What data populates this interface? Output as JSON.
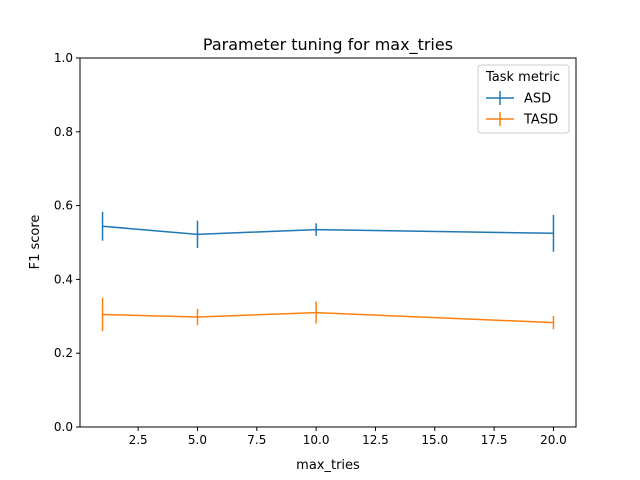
{
  "chart_data": {
    "type": "line",
    "title": "Parameter tuning for max_tries",
    "xlabel": "max_tries",
    "ylabel": "F1 score",
    "xlim": [
      0.05,
      20.95
    ],
    "ylim": [
      0.0,
      1.0
    ],
    "xticks": [
      2.5,
      5.0,
      7.5,
      10.0,
      12.5,
      15.0,
      17.5,
      20.0
    ],
    "xtick_labels": [
      "2.5",
      "5.0",
      "7.5",
      "10.0",
      "12.5",
      "15.0",
      "17.5",
      "20.0"
    ],
    "yticks": [
      0.0,
      0.2,
      0.4,
      0.6,
      0.8,
      1.0
    ],
    "ytick_labels": [
      "0.0",
      "0.2",
      "0.4",
      "0.6",
      "0.8",
      "1.0"
    ],
    "grid": false,
    "legend": {
      "title": "Task metric",
      "placement": "top-right"
    },
    "x": [
      1,
      5,
      10,
      20
    ],
    "series": [
      {
        "name": "ASD",
        "color": "#1f77b4",
        "values": [
          0.544,
          0.522,
          0.535,
          0.525
        ],
        "errors": [
          0.039,
          0.037,
          0.017,
          0.05
        ]
      },
      {
        "name": "TASD",
        "color": "#ff7f0e",
        "values": [
          0.305,
          0.298,
          0.31,
          0.283
        ],
        "errors": [
          0.045,
          0.022,
          0.03,
          0.018
        ]
      }
    ]
  }
}
